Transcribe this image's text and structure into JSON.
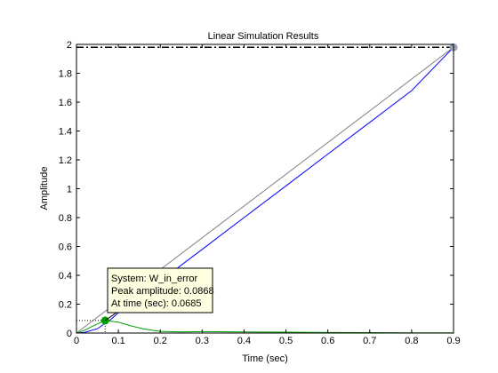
{
  "chart_data": {
    "type": "line",
    "title": "Linear Simulation Results",
    "xlabel": "Time (sec)",
    "ylabel": "Amplitude",
    "xlim": [
      0,
      0.9
    ],
    "ylim": [
      0,
      2
    ],
    "xticks": [
      0,
      0.1,
      0.2,
      0.3,
      0.4,
      0.5,
      0.6,
      0.7,
      0.8,
      0.9
    ],
    "xtick_labels": [
      "0",
      "0.1",
      "0.2",
      "0.3",
      "0.4",
      "0.5",
      "0.6",
      "0.7",
      "0.8",
      "0.9"
    ],
    "yticks": [
      0,
      0.2,
      0.4,
      0.6,
      0.8,
      1,
      1.2,
      1.4,
      1.6,
      1.8,
      2
    ],
    "ytick_labels": [
      "0",
      "0.2",
      "0.4",
      "0.6",
      "0.8",
      "1",
      "1.2",
      "1.4",
      "1.6",
      "1.8",
      "2"
    ],
    "grid": false,
    "series": [
      {
        "color": "#0000ff",
        "x": [
          0,
          0.02,
          0.05,
          0.08,
          0.1,
          0.2,
          0.3,
          0.4,
          0.5,
          0.6,
          0.7,
          0.8,
          0.9
        ],
        "y": [
          0,
          0.005,
          0.03,
          0.09,
          0.14,
          0.36,
          0.58,
          0.8,
          1.02,
          1.24,
          1.46,
          1.68,
          1.98
        ]
      },
      {
        "color": "#808080",
        "x": [
          0,
          0.9
        ],
        "y": [
          0,
          1.98
        ]
      },
      {
        "color": "#00a000",
        "x": [
          0,
          0.02,
          0.04,
          0.0685,
          0.1,
          0.13,
          0.16,
          0.2,
          0.25,
          0.3,
          0.4,
          0.5,
          0.6,
          0.7,
          0.8,
          0.9
        ],
        "y": [
          0,
          0.02,
          0.05,
          0.0868,
          0.075,
          0.05,
          0.028,
          0.012,
          0.008,
          0.01,
          0.008,
          0.006,
          0.004,
          0.003,
          0.002,
          0.002
        ]
      }
    ],
    "reference_lines": {
      "final_value_y": 1.98,
      "final_time_x": 0.9,
      "peak_time_x": 0.0685,
      "peak_amplitude_y": 0.0868
    },
    "markers": [
      {
        "x": 0.9,
        "y": 1.98,
        "color": "#9aa0b8"
      },
      {
        "x": 0.0685,
        "y": 0.0868,
        "color": "#00a000"
      }
    ],
    "datatip": {
      "lines": [
        "System: W_in_error",
        "Peak amplitude: 0.0868",
        "At time (sec): 0.0685"
      ],
      "background": "#ffffe1"
    }
  }
}
